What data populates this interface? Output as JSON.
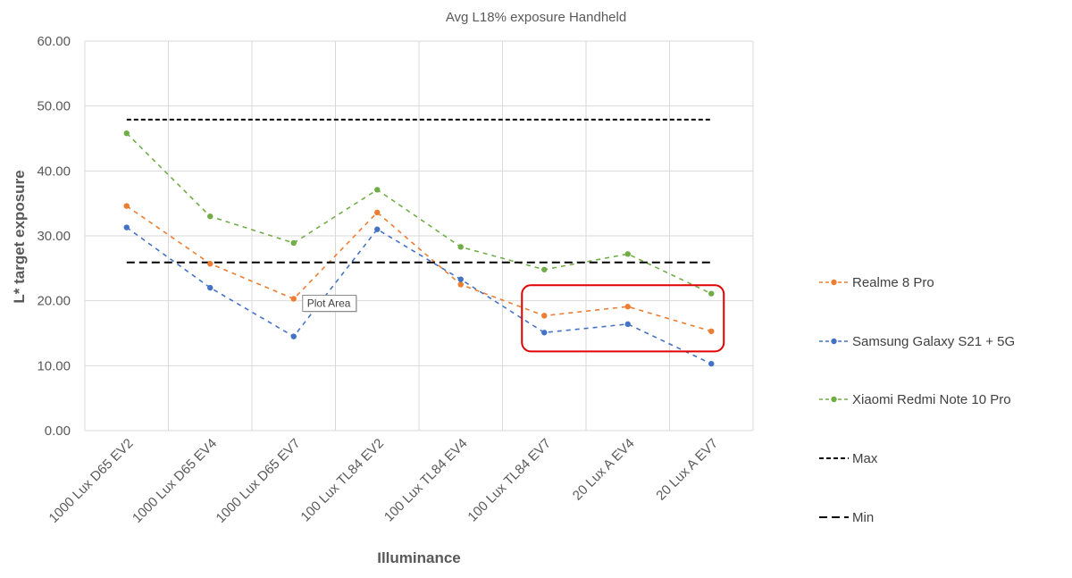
{
  "chart_data": {
    "type": "line",
    "title": "Avg L18% exposure Handheld",
    "xlabel": "Illuminance",
    "ylabel": "L* target exposure",
    "categories": [
      "1000 Lux D65 EV2",
      "1000 Lux D65 EV4",
      "1000 Lux D65 EV7",
      "100 Lux TL84 EV2",
      "100 Lux TL84 EV4",
      "100 Lux TL84 EV7",
      "20 Lux A EV4",
      "20 Lux A EV7"
    ],
    "ylim": [
      0,
      60
    ],
    "yticks": [
      "0.00",
      "10.00",
      "20.00",
      "30.00",
      "40.00",
      "50.00",
      "60.00"
    ],
    "grid": true,
    "legend_position": "right",
    "series": [
      {
        "name": "Realme 8 Pro",
        "color": "#ed7d31",
        "style": "dashed",
        "markers": true,
        "values": [
          34.6,
          25.7,
          20.3,
          33.6,
          22.5,
          17.7,
          19.1,
          15.3
        ]
      },
      {
        "name": "Samsung Galaxy S21 + 5G",
        "color": "#4472c4",
        "style": "dashed",
        "markers": true,
        "values": [
          31.3,
          22.0,
          14.5,
          31.0,
          23.3,
          15.1,
          16.4,
          10.3
        ]
      },
      {
        "name": "Xiaomi Redmi Note 10 Pro",
        "color": "#70ad47",
        "style": "dashed",
        "markers": true,
        "values": [
          45.8,
          33.0,
          28.9,
          37.1,
          28.3,
          24.8,
          27.2,
          21.1
        ]
      },
      {
        "name": "Max",
        "color": "#000000",
        "style": "short-dash",
        "markers": false,
        "values": [
          47.9,
          47.9,
          47.9,
          47.9,
          47.9,
          47.9,
          47.9,
          47.9
        ]
      },
      {
        "name": "Min",
        "color": "#000000",
        "style": "long-dash",
        "markers": false,
        "values": [
          25.9,
          25.9,
          25.9,
          25.9,
          25.9,
          25.9,
          25.9,
          25.9
        ]
      }
    ],
    "annotations": {
      "tooltip_text": "Plot Area",
      "highlight_box_color": "#e00000",
      "highlight_box_covers": {
        "categories": [
          "100 Lux TL84 EV7",
          "20 Lux A EV7"
        ],
        "y_range": [
          12.2,
          22.4
        ]
      }
    }
  }
}
